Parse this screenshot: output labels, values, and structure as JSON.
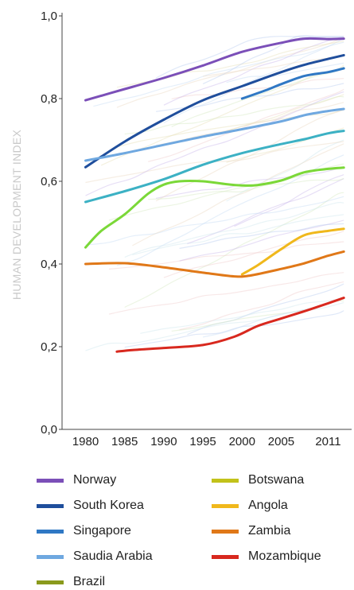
{
  "chart_data": {
    "type": "line",
    "title": "",
    "xlabel": "",
    "ylabel": "HUMAN DEVELOPMENT INDEX",
    "xlim": [
      1977,
      2014
    ],
    "ylim": [
      0,
      1
    ],
    "x_ticks": [
      "1980",
      "1985",
      "1990",
      "1995",
      "2000",
      "2005",
      "2011"
    ],
    "y_ticks": [
      "0,0",
      "0,2",
      "0,4",
      "0,6",
      "0,8",
      "1,0"
    ],
    "grid": false,
    "legend_position": "bottom",
    "series": [
      {
        "name": "Norway",
        "color": "#7b4fb8",
        "x": [
          1980,
          1985,
          1990,
          1995,
          2000,
          2005,
          2008,
          2011,
          2013
        ],
        "y": [
          0.796,
          0.823,
          0.85,
          0.88,
          0.913,
          0.935,
          0.945,
          0.944,
          0.945
        ]
      },
      {
        "name": "South Korea",
        "color": "#1f4e9c",
        "x": [
          1980,
          1985,
          1990,
          1995,
          2000,
          2005,
          2008,
          2011,
          2013
        ],
        "y": [
          0.634,
          0.696,
          0.749,
          0.796,
          0.83,
          0.864,
          0.882,
          0.896,
          0.905
        ]
      },
      {
        "name": "Singapore",
        "color": "#2f78c4",
        "x": [
          2000,
          2003,
          2005,
          2008,
          2011,
          2013
        ],
        "y": [
          0.8,
          0.82,
          0.835,
          0.855,
          0.864,
          0.873
        ]
      },
      {
        "name": "Saudia Arabia",
        "color": "#6fa8e0",
        "x": [
          1980,
          1985,
          1990,
          1995,
          2000,
          2005,
          2008,
          2011,
          2013
        ],
        "y": [
          0.65,
          0.668,
          0.688,
          0.708,
          0.726,
          0.745,
          0.76,
          0.77,
          0.775
        ]
      },
      {
        "name": "Brazil",
        "color": "#8a9a1c",
        "x": [],
        "y": []
      },
      {
        "name": "Botswana",
        "color": "#c2c21a",
        "x": [],
        "y": []
      },
      {
        "name": "Angola",
        "color": "#f0b81c",
        "x": [
          2000,
          2002,
          2005,
          2008,
          2011,
          2013
        ],
        "y": [
          0.375,
          0.397,
          0.436,
          0.47,
          0.48,
          0.485
        ]
      },
      {
        "name": "Zambia",
        "color": "#e07818",
        "x": [
          1980,
          1985,
          1990,
          1995,
          1999,
          2001,
          2005,
          2008,
          2011,
          2013
        ],
        "y": [
          0.4,
          0.402,
          0.392,
          0.379,
          0.37,
          0.372,
          0.388,
          0.402,
          0.42,
          0.43
        ]
      },
      {
        "name": "Mozambique",
        "color": "#d8281e",
        "x": [
          1984,
          1986,
          1990,
          1995,
          1999,
          2002,
          2005,
          2008,
          2011,
          2013
        ],
        "y": [
          0.188,
          0.192,
          0.197,
          0.204,
          0.224,
          0.25,
          0.268,
          0.286,
          0.305,
          0.318
        ]
      }
    ],
    "unlisted_series": [
      {
        "color": "#3cb1c4",
        "x": [
          1980,
          1985,
          1990,
          1995,
          2000,
          2005,
          2008,
          2011,
          2013
        ],
        "y": [
          0.55,
          0.576,
          0.605,
          0.64,
          0.668,
          0.69,
          0.702,
          0.716,
          0.722
        ]
      },
      {
        "color": "#7bd838",
        "x": [
          1980,
          1982,
          1985,
          1988,
          1990,
          1992,
          1995,
          1998,
          2000,
          2002,
          2005,
          2008,
          2011,
          2013
        ],
        "y": [
          0.44,
          0.48,
          0.52,
          0.57,
          0.592,
          0.6,
          0.6,
          0.593,
          0.59,
          0.591,
          0.602,
          0.622,
          0.63,
          0.633
        ]
      }
    ]
  },
  "legend": {
    "items": [
      "Norway",
      "South Korea",
      "Singapore",
      "Saudia Arabia",
      "Brazil",
      "Botswana",
      "Angola",
      "Zambia",
      "Mozambique"
    ]
  }
}
